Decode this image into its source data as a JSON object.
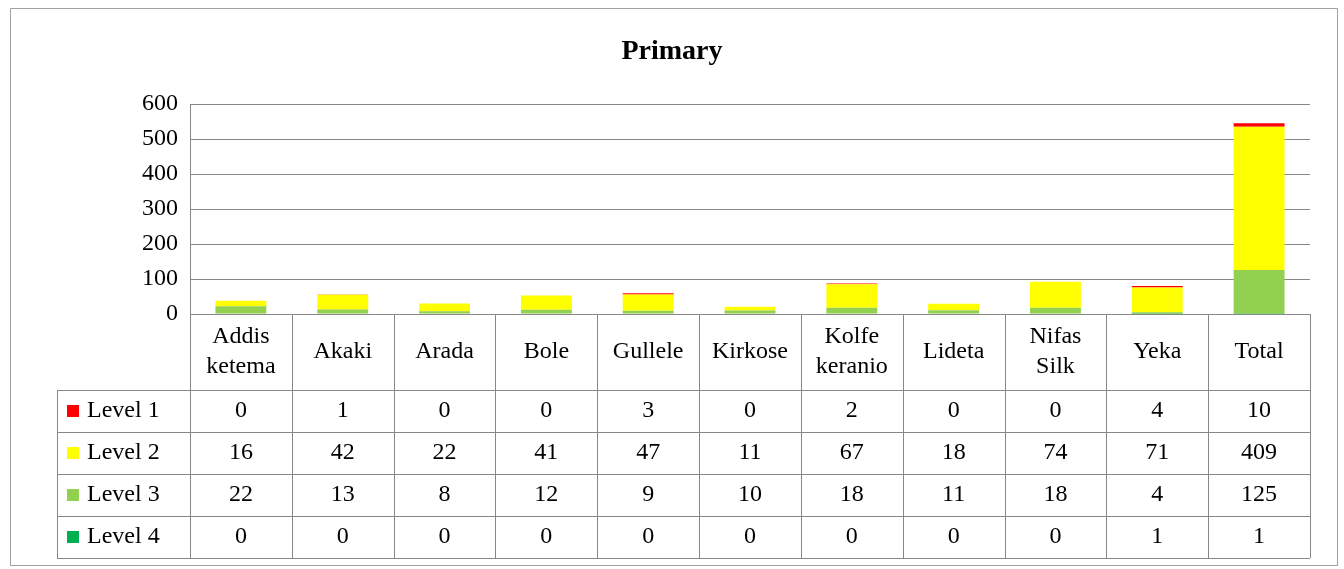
{
  "chart_data": {
    "type": "bar",
    "title": "Primary",
    "stacked": true,
    "categories": [
      "Addis ketema",
      "Akaki",
      "Arada",
      "Bole",
      "Gullele",
      "Kirkose",
      "Kolfe keranio",
      "Lideta",
      "Nifas Silk",
      "Yeka",
      "Total"
    ],
    "series": [
      {
        "name": "Level 4",
        "color": "#00b050",
        "values": [
          0,
          0,
          0,
          0,
          0,
          0,
          0,
          0,
          0,
          1,
          1
        ]
      },
      {
        "name": "Level 3",
        "color": "#92d050",
        "values": [
          22,
          13,
          8,
          12,
          9,
          10,
          18,
          11,
          18,
          4,
          125
        ]
      },
      {
        "name": "Level 2",
        "color": "#ffff00",
        "values": [
          16,
          42,
          22,
          41,
          47,
          11,
          67,
          18,
          74,
          71,
          409
        ]
      },
      {
        "name": "Level 1",
        "color": "#ff0000",
        "values": [
          0,
          1,
          0,
          0,
          3,
          0,
          2,
          0,
          0,
          4,
          10
        ]
      }
    ],
    "ylim": [
      0,
      600
    ],
    "yticks": [
      0,
      100,
      200,
      300,
      400,
      500,
      600
    ],
    "grid": "y",
    "legend": "bottom left",
    "data_labels": true
  }
}
